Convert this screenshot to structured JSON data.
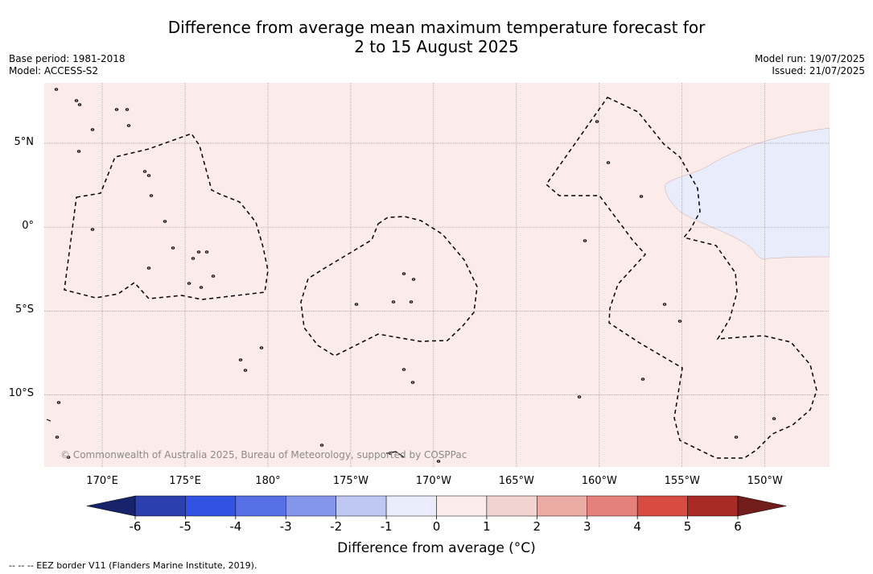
{
  "title_line1": "Difference from average mean maximum temperature forecast for",
  "title_line2": "2 to 15 August 2025",
  "base_period": "Base period: 1981-2018",
  "model": "Model: ACCESS-S2",
  "model_run": "Model run: 19/07/2025",
  "issued": "Issued: 21/07/2025",
  "copyright": "© Commonwealth of Australia 2025, Bureau of Meteorology, supported by COSPPac",
  "map": {
    "lon_min": 166.5,
    "lon_max": 213.9,
    "lat_min": -14.3,
    "lat_max": 8.6,
    "background_anomaly_class": "0 to 1",
    "region_anomaly_class": "-1 to 0",
    "colors": {
      "ocean_anomaly": "#fbecea",
      "cool_region": "#e9ecfb",
      "grid": "#888888",
      "eez": "#000000"
    }
  },
  "lon_ticks": [
    {
      "value": 170,
      "label": "170°E"
    },
    {
      "value": 175,
      "label": "175°E"
    },
    {
      "value": 180,
      "label": "180°"
    },
    {
      "value": 185,
      "label": "175°W"
    },
    {
      "value": 190,
      "label": "170°W"
    },
    {
      "value": 195,
      "label": "165°W"
    },
    {
      "value": 200,
      "label": "160°W"
    },
    {
      "value": 205,
      "label": "155°W"
    },
    {
      "value": 210,
      "label": "150°W"
    }
  ],
  "lat_ticks": [
    {
      "value": 5,
      "label": "5°N"
    },
    {
      "value": 0,
      "label": "0°"
    },
    {
      "value": -5,
      "label": "5°S"
    },
    {
      "value": -10,
      "label": "10°S"
    }
  ],
  "colorbar": {
    "ticks": [
      "-6",
      "-5",
      "-4",
      "-3",
      "-2",
      "-1",
      "0",
      "1",
      "2",
      "3",
      "4",
      "5",
      "6"
    ],
    "colors": [
      "#2b3fae",
      "#3252e3",
      "#566fe6",
      "#8496ea",
      "#bfc7f3",
      "#e9ecfb",
      "#fbecea",
      "#f1d4d0",
      "#ebaba5",
      "#e5817a",
      "#d84b40",
      "#aa2a26"
    ],
    "low_extend_color": "#17246b",
    "high_extend_color": "#711d1b",
    "label": "Difference from average (°C)"
  },
  "legend_note": "--  --  -- EEZ border V11 (Flanders Marine Institute, 2019)."
}
